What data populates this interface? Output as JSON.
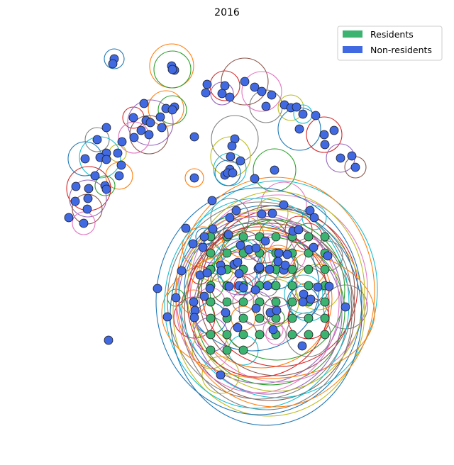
{
  "chart_data": {
    "type": "scatter",
    "title": "2016",
    "xlabel": "",
    "ylabel": "",
    "axes_visible": false,
    "grid": false,
    "legend_placement": "top-right",
    "legend": [
      {
        "name": "Residents",
        "color": "#3cb371"
      },
      {
        "name": "Non-residents",
        "color": "#4169e1"
      }
    ],
    "contour_palette": [
      "#1f77b4",
      "#ff7f0e",
      "#2ca02c",
      "#d62728",
      "#9467bd",
      "#8c564b",
      "#e377c2",
      "#7f7f7f",
      "#bcbd22",
      "#17becf"
    ],
    "series": [
      {
        "name": "Residents",
        "color": "#3cb371",
        "points": [
          [
            297,
            334
          ],
          [
            320,
            334
          ],
          [
            343,
            334
          ],
          [
            366,
            334
          ],
          [
            389,
            334
          ],
          [
            412,
            334
          ],
          [
            435,
            334
          ],
          [
            458,
            334
          ],
          [
            297,
            357
          ],
          [
            320,
            357
          ],
          [
            343,
            357
          ],
          [
            366,
            357
          ],
          [
            389,
            357
          ],
          [
            412,
            357
          ],
          [
            435,
            357
          ],
          [
            458,
            357
          ],
          [
            297,
            380
          ],
          [
            320,
            380
          ],
          [
            343,
            380
          ],
          [
            366,
            380
          ],
          [
            389,
            380
          ],
          [
            412,
            380
          ],
          [
            435,
            380
          ],
          [
            458,
            380
          ],
          [
            297,
            403
          ],
          [
            320,
            403
          ],
          [
            343,
            403
          ],
          [
            366,
            403
          ],
          [
            389,
            403
          ],
          [
            412,
            403
          ],
          [
            435,
            403
          ],
          [
            458,
            403
          ],
          [
            297,
            426
          ],
          [
            320,
            426
          ],
          [
            343,
            426
          ],
          [
            366,
            426
          ],
          [
            389,
            426
          ],
          [
            412,
            426
          ],
          [
            435,
            426
          ],
          [
            458,
            426
          ],
          [
            297,
            449
          ],
          [
            320,
            449
          ],
          [
            343,
            449
          ],
          [
            366,
            449
          ],
          [
            389,
            449
          ],
          [
            412,
            449
          ],
          [
            435,
            449
          ],
          [
            458,
            449
          ],
          [
            297,
            472
          ],
          [
            320,
            472
          ],
          [
            343,
            472
          ],
          [
            366,
            472
          ],
          [
            389,
            472
          ],
          [
            412,
            472
          ],
          [
            435,
            472
          ],
          [
            458,
            472
          ],
          [
            297,
            494
          ],
          [
            320,
            494
          ],
          [
            343,
            494
          ]
        ]
      },
      {
        "name": "Non-residents",
        "color": "#4169e1",
        "points": [
          [
            161,
            83
          ],
          [
            159,
            90
          ],
          [
            242,
            93
          ],
          [
            246,
            99
          ],
          [
            243,
            98
          ],
          [
            292,
            119
          ],
          [
            317,
            121
          ],
          [
            290,
            131
          ],
          [
            313,
            132
          ],
          [
            324,
            137
          ],
          [
            345,
            115
          ],
          [
            359,
            123
          ],
          [
            369,
            129
          ],
          [
            383,
            134
          ],
          [
            375,
            150
          ],
          [
            401,
            148
          ],
          [
            410,
            152
          ],
          [
            418,
            151
          ],
          [
            427,
            161
          ],
          [
            445,
            163
          ],
          [
            422,
            182
          ],
          [
            203,
            146
          ],
          [
            234,
            153
          ],
          [
            246,
            151
          ],
          [
            243,
            155
          ],
          [
            226,
            165
          ],
          [
            188,
            166
          ],
          [
            206,
            170
          ],
          [
            212,
            173
          ],
          [
            199,
            184
          ],
          [
            210,
            190
          ],
          [
            228,
            180
          ],
          [
            189,
            194
          ],
          [
            150,
            180
          ],
          [
            137,
            197
          ],
          [
            172,
            200
          ],
          [
            166,
            216
          ],
          [
            150,
            216
          ],
          [
            141,
            222
          ],
          [
            150,
            225
          ],
          [
            120,
            224
          ],
          [
            171,
            233
          ],
          [
            168,
            248
          ],
          [
            134,
            248
          ],
          [
            148,
            262
          ],
          [
            150,
            267
          ],
          [
            125,
            266
          ],
          [
            107,
            263
          ],
          [
            124,
            280
          ],
          [
            106,
            284
          ],
          [
            123,
            295
          ],
          [
            97,
            307
          ],
          [
            118,
            315
          ],
          [
            274,
            193
          ],
          [
            331,
            196
          ],
          [
            327,
            206
          ],
          [
            325,
            221
          ],
          [
            339,
            227
          ],
          [
            324,
            239
          ],
          [
            317,
            247
          ],
          [
            321,
            244
          ],
          [
            328,
            244
          ],
          [
            274,
            251
          ],
          [
            359,
            252
          ],
          [
            387,
            240
          ],
          [
            471,
            184
          ],
          [
            457,
            190
          ],
          [
            458,
            204
          ],
          [
            480,
            223
          ],
          [
            496,
            220
          ],
          [
            501,
            236
          ],
          [
            299,
            283
          ],
          [
            400,
            289
          ],
          [
            333,
            297
          ],
          [
            324,
            307
          ],
          [
            369,
            302
          ],
          [
            384,
            301
          ],
          [
            437,
            297
          ],
          [
            443,
            307
          ],
          [
            262,
            322
          ],
          [
            288,
            334
          ],
          [
            272,
            344
          ],
          [
            286,
            349
          ],
          [
            300,
            323
          ],
          [
            322,
            331
          ],
          [
            413,
            326
          ],
          [
            421,
            324
          ],
          [
            339,
            346
          ],
          [
            351,
            352
          ],
          [
            361,
            350
          ],
          [
            374,
            340
          ],
          [
            393,
            357
          ],
          [
            405,
            359
          ],
          [
            442,
            349
          ],
          [
            462,
            361
          ],
          [
            311,
            374
          ],
          [
            312,
            382
          ],
          [
            330,
            373
          ],
          [
            335,
            370
          ],
          [
            364,
            379
          ],
          [
            366,
            377
          ],
          [
            380,
            380
          ],
          [
            392,
            369
          ],
          [
            400,
            381
          ],
          [
            402,
            374
          ],
          [
            256,
            382
          ],
          [
            282,
            388
          ],
          [
            292,
            385
          ],
          [
            337,
            386
          ],
          [
            296,
            407
          ],
          [
            323,
            404
          ],
          [
            337,
            403
          ],
          [
            343,
            406
          ],
          [
            360,
            409
          ],
          [
            377,
            403
          ],
          [
            464,
            404
          ],
          [
            448,
            405
          ],
          [
            222,
            407
          ],
          [
            428,
            415
          ],
          [
            438,
            422
          ],
          [
            427,
            426
          ],
          [
            288,
            418
          ],
          [
            273,
            426
          ],
          [
            275,
            438
          ],
          [
            248,
            420
          ],
          [
            236,
            447
          ],
          [
            274,
            448
          ],
          [
            318,
            441
          ],
          [
            361,
            435
          ],
          [
            381,
            441
          ],
          [
            390,
            438
          ],
          [
            335,
            462
          ],
          [
            385,
            465
          ],
          [
            426,
            488
          ],
          [
            487,
            433
          ],
          [
            153,
            480
          ],
          [
            311,
            529
          ]
        ]
      }
    ]
  }
}
